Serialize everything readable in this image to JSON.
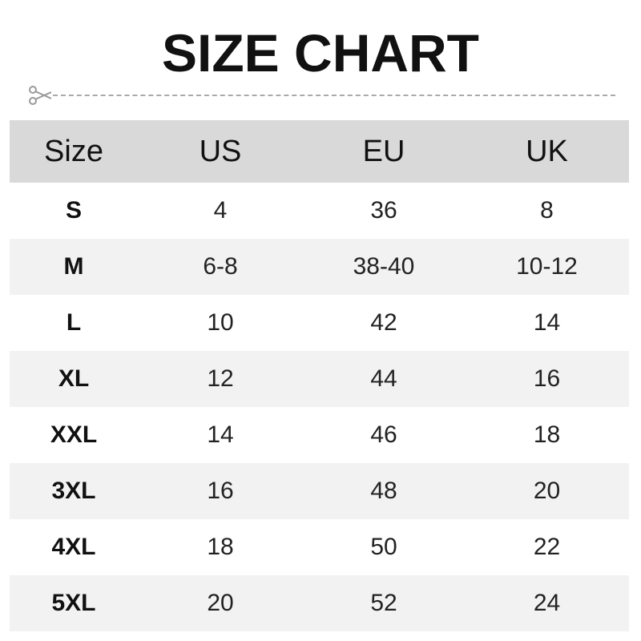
{
  "title": "SIZE CHART",
  "icons": {
    "cut": "scissors-icon"
  },
  "colors": {
    "header_bg": "#d9d9d9",
    "stripe_bg": "#f2f2f2",
    "dash": "#aaaaaa"
  },
  "chart_data": {
    "type": "table",
    "title": "SIZE CHART",
    "columns": [
      "Size",
      "US",
      "EU",
      "UK"
    ],
    "rows": [
      [
        "S",
        "4",
        "36",
        "8"
      ],
      [
        "M",
        "6-8",
        "38-40",
        "10-12"
      ],
      [
        "L",
        "10",
        "42",
        "14"
      ],
      [
        "XL",
        "12",
        "44",
        "16"
      ],
      [
        "XXL",
        "14",
        "46",
        "18"
      ],
      [
        "3XL",
        "16",
        "48",
        "20"
      ],
      [
        "4XL",
        "18",
        "50",
        "22"
      ],
      [
        "5XL",
        "20",
        "52",
        "24"
      ]
    ]
  }
}
